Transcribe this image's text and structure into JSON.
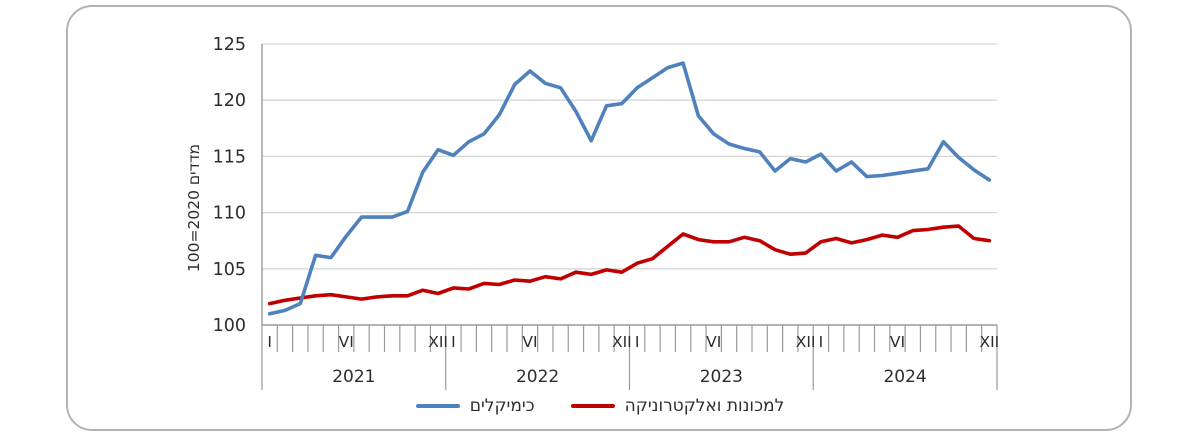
{
  "figure": {
    "background": "#ffffff",
    "border_color": "#b3b3b3"
  },
  "chart_data": {
    "type": "line",
    "title": "",
    "ylabel": "מדדים 2020=100",
    "xlabel": "",
    "ylim": [
      100,
      125
    ],
    "y_ticks": [
      100,
      105,
      110,
      115,
      120,
      125
    ],
    "grid": "horizontal",
    "legend_position": "bottom-center",
    "n_points": 48,
    "years": [
      "2021",
      "2022",
      "2023",
      "2024"
    ],
    "x_month_tick_labels": [
      {
        "label": "I",
        "month": 1
      },
      {
        "label": "VI",
        "month": 6
      },
      {
        "label": "XII",
        "month": 12
      }
    ],
    "series": [
      {
        "name": "כימיקלים",
        "color": "#4f81bd",
        "values": [
          101.0,
          101.3,
          101.9,
          106.2,
          106.0,
          107.9,
          109.6,
          109.6,
          109.6,
          110.1,
          113.6,
          115.6,
          115.1,
          116.3,
          117.0,
          118.7,
          121.4,
          122.6,
          121.5,
          121.1,
          119.0,
          116.4,
          119.5,
          119.7,
          121.1,
          122.0,
          122.9,
          123.3,
          118.6,
          117.0,
          116.1,
          115.7,
          115.4,
          113.7,
          114.8,
          114.5,
          115.2,
          113.7,
          114.5,
          113.2,
          113.3,
          113.5,
          113.7,
          113.9,
          116.3,
          114.9,
          113.8,
          112.9
        ]
      },
      {
        "name": "למכונות ואלקטרוניקה",
        "color": "#c00000",
        "values": [
          101.9,
          102.2,
          102.4,
          102.6,
          102.7,
          102.5,
          102.3,
          102.5,
          102.6,
          102.6,
          103.1,
          102.8,
          103.3,
          103.2,
          103.7,
          103.6,
          104.0,
          103.9,
          104.3,
          104.1,
          104.7,
          104.5,
          104.9,
          104.7,
          105.5,
          105.9,
          107.0,
          108.1,
          107.6,
          107.4,
          107.4,
          107.8,
          107.5,
          106.7,
          106.3,
          106.4,
          107.4,
          107.7,
          107.3,
          107.6,
          108.0,
          107.8,
          108.4,
          108.5,
          108.7,
          108.8,
          107.7,
          107.5
        ]
      }
    ]
  }
}
